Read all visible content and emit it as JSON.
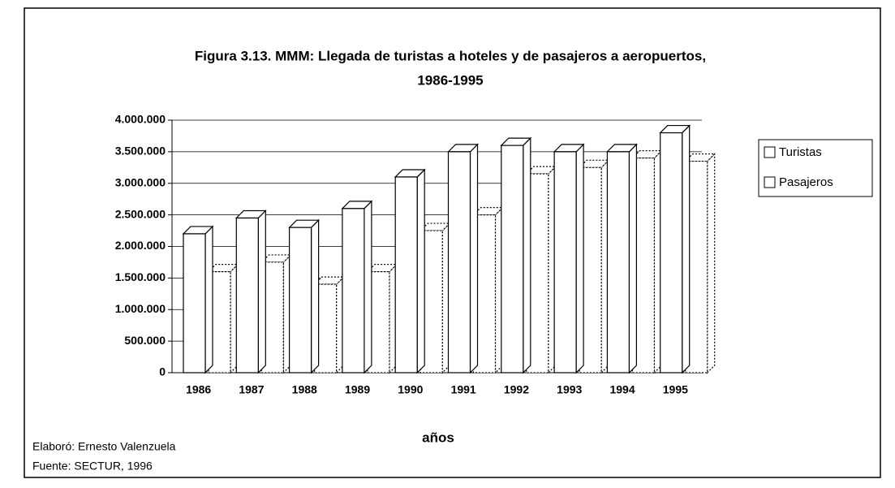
{
  "chart_data": {
    "type": "bar",
    "title": "Figura 3.13. MMM: Llegada de turistas a hoteles y de pasajeros a aeropuertos,",
    "subtitle": "1986-1995",
    "categories": [
      "1986",
      "1987",
      "1988",
      "1989",
      "1990",
      "1991",
      "1992",
      "1993",
      "1994",
      "1995"
    ],
    "series": [
      {
        "name": "Turistas",
        "color": "#ffffff",
        "values": [
          2200000,
          2450000,
          2300000,
          2600000,
          3100000,
          3500000,
          3600000,
          3500000,
          3500000,
          3800000
        ]
      },
      {
        "name": "Pasajeros",
        "color": "#ffffff",
        "values": [
          1600000,
          1750000,
          1400000,
          1600000,
          2250000,
          2500000,
          3150000,
          3250000,
          3400000,
          3350000
        ]
      }
    ],
    "x_label": "años",
    "ylim": [
      0,
      4000000
    ],
    "yticks": [
      {
        "value": 0,
        "label": "0"
      },
      {
        "value": 500000,
        "label": "500.000"
      },
      {
        "value": 1000000,
        "label": "1.000.000"
      },
      {
        "value": 1500000,
        "label": "1.500.000"
      },
      {
        "value": 2000000,
        "label": "2.000.000"
      },
      {
        "value": 2500000,
        "label": "2.500.000"
      },
      {
        "value": 3000000,
        "label": "3.000.000"
      },
      {
        "value": 3500000,
        "label": "3.500.000"
      },
      {
        "value": 4000000,
        "label": "4.000.000"
      }
    ],
    "grid": true,
    "legend": "right",
    "notes": [
      "Elaboró: Ernesto Valenzuela",
      "Fuente: SECTUR, 1996"
    ]
  }
}
